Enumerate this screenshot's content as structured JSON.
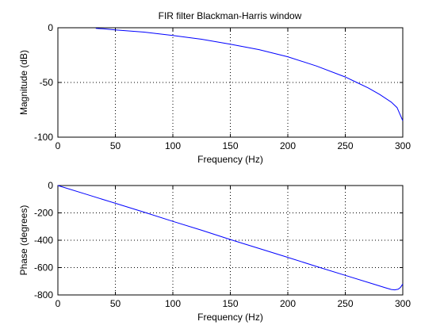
{
  "title": "FIR filter Blackman-Harris window",
  "chart_data": [
    {
      "type": "line",
      "title": "FIR filter Blackman-Harris window",
      "xlabel": "Frequency (Hz)",
      "ylabel": "Magnitude (dB)",
      "xlim": [
        0,
        300
      ],
      "ylim": [
        -100,
        0
      ],
      "xticks": [
        0,
        50,
        100,
        150,
        200,
        250,
        300
      ],
      "yticks": [
        -100,
        -50,
        0
      ],
      "grid": true,
      "series": [
        {
          "color": "#0000ff",
          "x": [
            33,
            40,
            50,
            75,
            100,
            125,
            150,
            175,
            200,
            225,
            250,
            260,
            270,
            280,
            290,
            295,
            300
          ],
          "y": [
            -0.5,
            -1,
            -2,
            -4,
            -7,
            -10.5,
            -15,
            -20,
            -26.5,
            -35,
            -45,
            -50,
            -55,
            -61,
            -68,
            -73,
            -85
          ]
        }
      ]
    },
    {
      "type": "line",
      "title": "",
      "xlabel": "Frequency (Hz)",
      "ylabel": "Phase (degrees)",
      "xlim": [
        0,
        300
      ],
      "ylim": [
        -800,
        0
      ],
      "xticks": [
        0,
        50,
        100,
        150,
        200,
        250,
        300
      ],
      "yticks": [
        -800,
        -600,
        -400,
        -200,
        0
      ],
      "grid": true,
      "series": [
        {
          "color": "#0000ff",
          "x": [
            0,
            25,
            50,
            75,
            100,
            125,
            150,
            175,
            200,
            225,
            250,
            275,
            285,
            290,
            293,
            296,
            298,
            300
          ],
          "y": [
            0,
            -65,
            -130,
            -195,
            -262,
            -327,
            -395,
            -460,
            -525,
            -592,
            -657,
            -722,
            -748,
            -760,
            -763,
            -758,
            -745,
            -720
          ]
        }
      ]
    }
  ]
}
